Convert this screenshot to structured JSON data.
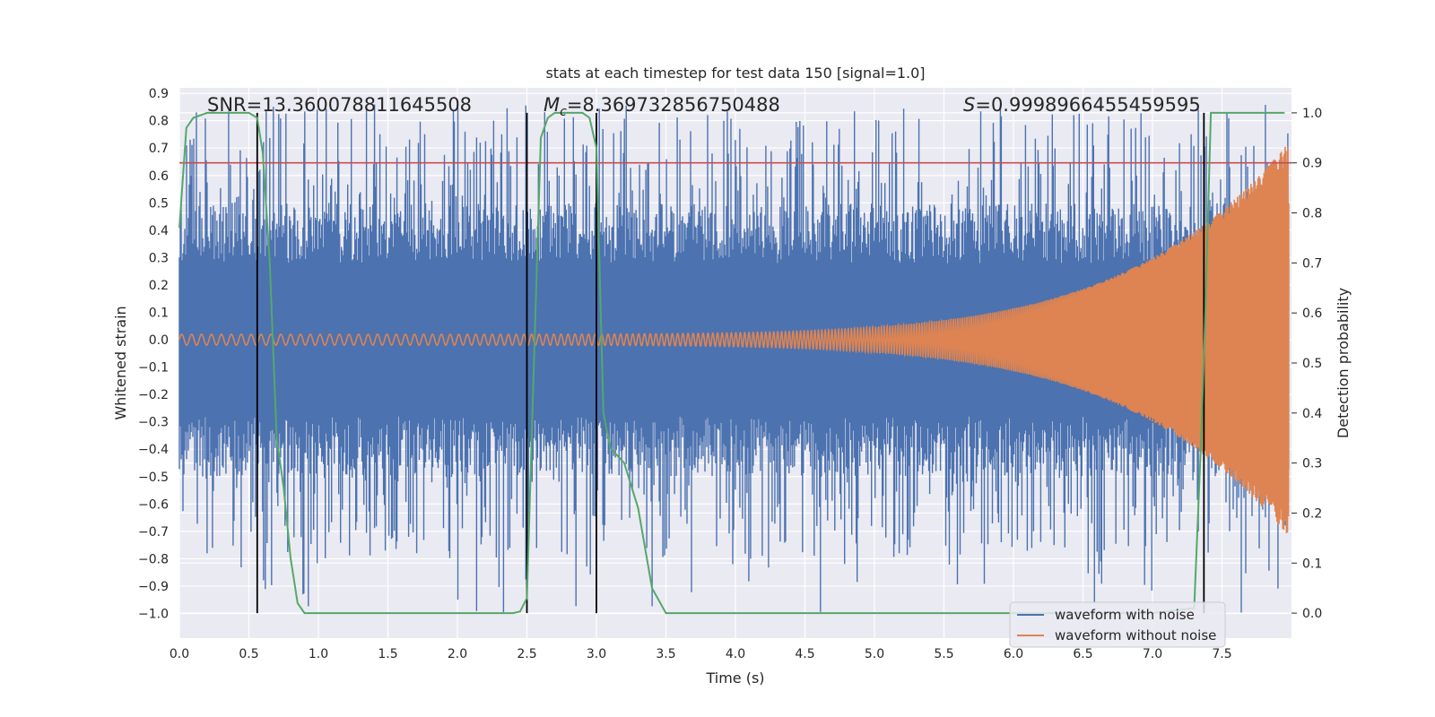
{
  "chart_data": {
    "type": "line",
    "title": "stats at each timestep for test data 150 [signal=1.0]",
    "xlabel": "Time (s)",
    "ylabel": "Whitened strain",
    "y2label": "Detection probability",
    "xlim": [
      0.0,
      8.0
    ],
    "ylim": [
      -1.09,
      0.92
    ],
    "y2lim": [
      -0.05,
      1.05
    ],
    "x_ticks": [
      0.0,
      0.5,
      1.0,
      1.5,
      2.0,
      2.5,
      3.0,
      3.5,
      4.0,
      4.5,
      5.0,
      5.5,
      6.0,
      6.5,
      7.0,
      7.5
    ],
    "x_tick_labels": [
      "0.0",
      "0.5",
      "1.0",
      "1.5",
      "2.0",
      "2.5",
      "3.0",
      "3.5",
      "4.0",
      "4.5",
      "5.0",
      "5.5",
      "6.0",
      "6.5",
      "7.0",
      "7.5"
    ],
    "y_ticks": [
      0.9,
      0.8,
      0.7,
      0.6,
      0.5,
      0.4,
      0.3,
      0.2,
      0.1,
      0.0,
      -0.1,
      -0.2,
      -0.3,
      -0.4,
      -0.5,
      -0.6,
      -0.7,
      -0.8,
      -0.9,
      -1.0
    ],
    "y_tick_labels": [
      "0.9",
      "0.8",
      "0.7",
      "0.6",
      "0.5",
      "0.4",
      "0.3",
      "0.2",
      "0.1",
      "0.0",
      "−0.1",
      "−0.2",
      "−0.3",
      "−0.4",
      "−0.5",
      "−0.6",
      "−0.7",
      "−0.8",
      "−0.9",
      "−1.0"
    ],
    "y2_ticks": [
      1.0,
      0.9,
      0.8,
      0.7,
      0.6,
      0.5,
      0.4,
      0.3,
      0.2,
      0.1,
      0.0
    ],
    "y2_tick_labels": [
      "1.0",
      "0.9",
      "0.8",
      "0.7",
      "0.6",
      "0.5",
      "0.4",
      "0.3",
      "0.2",
      "0.1",
      "0.0"
    ],
    "annotations": {
      "snr": "SNR=13.360078811645508",
      "mc_symbol": "M",
      "mc_sub": "c",
      "mc_value": "=8.369732856750488",
      "s_symbol": "S",
      "s_value": "=0.9998966455459595"
    },
    "legend": {
      "placement": "bottom-right",
      "entries": [
        "waveform with noise",
        "waveform without noise"
      ]
    },
    "threshold_line": {
      "y2": 0.9,
      "color": "#c44e52"
    },
    "vertical_lines_x": [
      0.56,
      2.5,
      3.0,
      7.37
    ],
    "series": [
      {
        "name": "waveform with noise",
        "color": "#4c72b0",
        "description_seed": 150,
        "envelope_base": 0.28,
        "spike_max": 0.86
      },
      {
        "name": "waveform without noise",
        "color": "#dd8452",
        "chirp_amp_start": 0.02,
        "chirp_amp_end": 0.72,
        "chirp_freq_start": 14,
        "chirp_freq_end": 150
      },
      {
        "name": "detection probability",
        "color": "#55a868",
        "axis": "y2",
        "x": [
          0.0,
          0.05,
          0.1,
          0.2,
          0.3,
          0.4,
          0.5,
          0.56,
          0.6,
          0.65,
          0.7,
          0.75,
          0.8,
          0.85,
          0.9,
          1.0,
          1.5,
          2.0,
          2.4,
          2.45,
          2.5,
          2.55,
          2.6,
          2.65,
          2.7,
          2.8,
          2.9,
          2.95,
          3.0,
          3.05,
          3.1,
          3.2,
          3.3,
          3.4,
          3.5,
          4.0,
          5.0,
          6.0,
          7.0,
          7.3,
          7.35,
          7.38,
          7.42,
          7.45,
          7.5,
          7.6,
          7.7,
          7.8,
          7.9,
          7.95
        ],
        "y": [
          0.77,
          0.97,
          0.99,
          1.0,
          1.0,
          1.0,
          1.0,
          0.99,
          0.92,
          0.7,
          0.35,
          0.25,
          0.11,
          0.02,
          0.0,
          0.0,
          0.0,
          0.0,
          0.0,
          0.003,
          0.03,
          0.5,
          0.95,
          0.99,
          1.0,
          1.0,
          1.0,
          0.99,
          0.93,
          0.4,
          0.33,
          0.3,
          0.21,
          0.05,
          0.0,
          0.0,
          0.0,
          0.0,
          0.0,
          0.01,
          0.35,
          0.6,
          1.0,
          1.0,
          1.0,
          1.0,
          1.0,
          1.0,
          1.0,
          1.0
        ]
      }
    ]
  },
  "colors": {
    "plot_background": "#eaeaf2",
    "grid": "#ffffff",
    "vline": "#000000"
  }
}
